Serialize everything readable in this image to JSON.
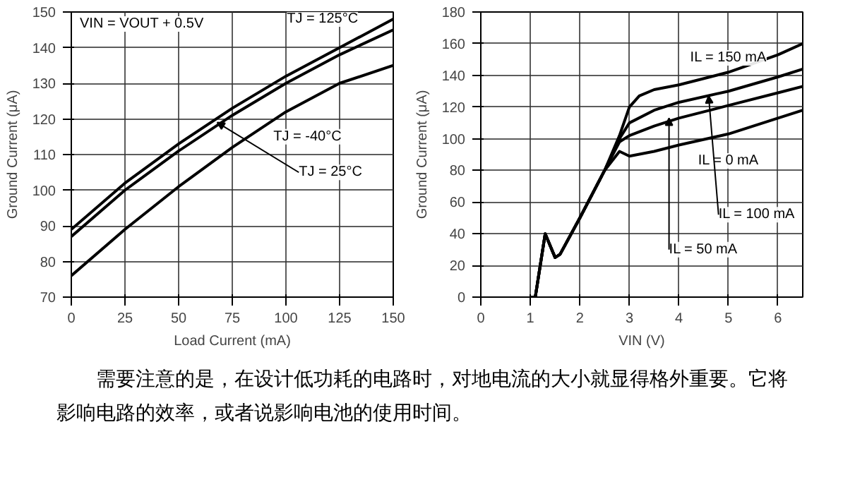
{
  "chart_data": [
    {
      "type": "line",
      "xlabel": "Load Current (mA)",
      "ylabel": "Ground Current (μA)",
      "x": [
        0,
        25,
        50,
        75,
        100,
        125,
        150
      ],
      "xlim": [
        0,
        150
      ],
      "ylim": [
        70,
        150
      ],
      "xticks": [
        0,
        25,
        50,
        75,
        100,
        125,
        150
      ],
      "yticks": [
        70,
        80,
        90,
        100,
        110,
        120,
        130,
        140,
        150
      ],
      "grid": true,
      "series": [
        {
          "color": "#000000",
          "values": [
            89,
            102,
            113,
            123,
            132,
            140,
            148
          ]
        },
        {
          "color": "#000000",
          "values": [
            87,
            100,
            111,
            121,
            130,
            138,
            145
          ]
        },
        {
          "color": "#000000",
          "values": [
            76,
            89,
            101,
            112,
            122,
            130,
            135
          ]
        }
      ],
      "annotations": [
        "VIN = VOUT + 0.5V",
        {
          "text": "TJ = 125°C",
          "x": 125,
          "y": 140
        },
        {
          "text": "TJ = -40°C",
          "x": 100,
          "y": 122
        },
        {
          "text": "TJ = 25°C",
          "x": 68,
          "y": 119
        }
      ]
    },
    {
      "type": "line",
      "xlabel": "VIN (V)",
      "ylabel": "Ground Current (μA)",
      "xlim": [
        0,
        6.5
      ],
      "ylim": [
        0,
        180
      ],
      "xticks": [
        0,
        1,
        2,
        3,
        4,
        5,
        6
      ],
      "yticks": [
        0,
        20,
        40,
        60,
        80,
        100,
        120,
        140,
        160,
        180
      ],
      "grid": true,
      "series": [
        {
          "color": "#000000",
          "x": [
            1.0,
            1.1,
            1.3,
            1.5,
            1.6,
            2.0,
            2.5,
            2.8,
            3.0,
            3.5,
            4.0,
            5.0,
            6.0,
            6.5
          ],
          "values": [
            0,
            0,
            40,
            25,
            27,
            50,
            80,
            92,
            89,
            92,
            96,
            103,
            113,
            118
          ]
        },
        {
          "color": "#000000",
          "x": [
            1.0,
            1.1,
            1.3,
            1.5,
            1.6,
            2.0,
            2.5,
            2.8,
            3.0,
            3.5,
            4.0,
            5.0,
            6.0,
            6.5
          ],
          "values": [
            0,
            0,
            40,
            25,
            27,
            50,
            80,
            98,
            102,
            108,
            113,
            121,
            129,
            133
          ]
        },
        {
          "color": "#000000",
          "x": [
            1.0,
            1.1,
            1.3,
            1.5,
            1.6,
            2.0,
            2.5,
            2.8,
            3.0,
            3.5,
            4.0,
            5.0,
            6.0,
            6.5
          ],
          "values": [
            0,
            0,
            40,
            25,
            27,
            50,
            80,
            100,
            110,
            118,
            123,
            130,
            139,
            144
          ]
        },
        {
          "color": "#000000",
          "x": [
            1.0,
            1.1,
            1.3,
            1.5,
            1.6,
            2.0,
            2.5,
            2.8,
            3.0,
            3.2,
            3.5,
            4.0,
            5.0,
            6.0,
            6.5
          ],
          "values": [
            0,
            0,
            40,
            25,
            27,
            50,
            80,
            102,
            120,
            127,
            131,
            134,
            142,
            153,
            160
          ]
        }
      ],
      "annotations": [
        {
          "text": "IL = 150 mA",
          "x": 4.5,
          "y": 135
        },
        {
          "text": "IL = 0 mA",
          "x": 4.2,
          "y": 98
        },
        {
          "text": "IL = 100 mA",
          "x": 4.6,
          "y": 127
        },
        {
          "text": "IL = 50 mA",
          "x": 3.8,
          "y": 113
        }
      ]
    },
    {
      "type": "other",
      "annotations": [
        "需要注意的是，在设计低功耗的电路时，对地电流的大小就显得格外重要。它将影响电路的效率，或者说影响电池的使用时间。"
      ]
    }
  ]
}
